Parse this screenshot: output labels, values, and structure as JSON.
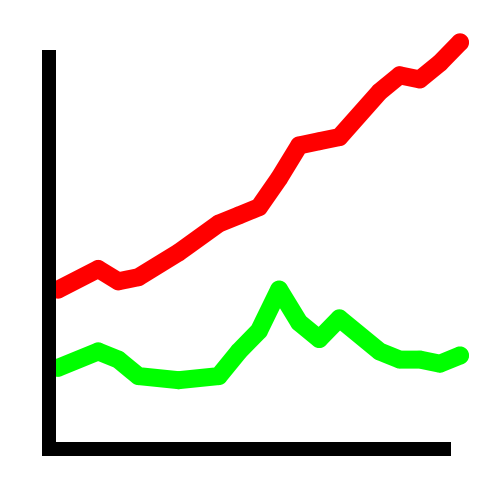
{
  "chart_data": {
    "type": "line",
    "title": "",
    "xlabel": "",
    "ylabel": "",
    "xlim": [
      0,
      20
    ],
    "ylim": [
      0,
      100
    ],
    "grid": false,
    "legend": "none",
    "x": [
      0,
      2,
      3,
      4,
      6,
      8,
      9,
      10,
      11,
      12,
      13,
      14,
      16,
      17,
      18,
      19,
      20
    ],
    "series": [
      {
        "color": "#ff0000",
        "values": [
          37,
          42,
          39,
          40,
          46,
          53,
          55,
          57,
          64,
          72,
          73,
          74,
          85,
          89,
          88,
          92,
          97
        ]
      },
      {
        "color": "#00ff00",
        "values": [
          18,
          22,
          20,
          16,
          15,
          16,
          22,
          27,
          37,
          29,
          25,
          30,
          22,
          20,
          20,
          19,
          21
        ]
      }
    ],
    "axis_color": "#000000"
  }
}
